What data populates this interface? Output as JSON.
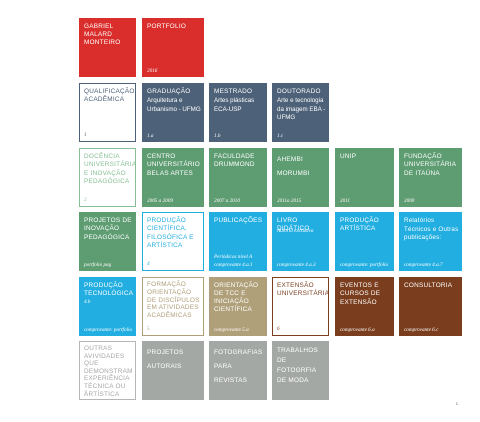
{
  "colors": {
    "red": "#d92e2b",
    "navy": "#4d6178",
    "green": "#5e9c72",
    "cyan": "#22aee1",
    "tan": "#b0a07a",
    "brown": "#7a3d1d",
    "gray": "#a4a8a4",
    "outline_navy": "#4d6178",
    "outline_green": "#86bf96",
    "outline_cyan": "#22aee1",
    "outline_gray": "#b6b6b6",
    "outline_tan": "#b0a07a",
    "outline_brown": "#7a3d1d"
  },
  "row1": {
    "name": "GABRIEL MALARD MONTEIRO",
    "portfolio": {
      "title": "PORTFOLIO",
      "year": "2016"
    }
  },
  "row2": [
    {
      "title": "QUALIFICAÇÃO ACADÊMICA",
      "code": "1"
    },
    {
      "title": "GRADUAÇÃO",
      "sub": "Arquitetura e Urbanismo - UFMG",
      "code": "1.a"
    },
    {
      "title": "MESTRADO",
      "sub": "Artes plásticas ECA-USP",
      "code": "1.b"
    },
    {
      "title": "DOUTORADO",
      "sub": "Arte e tecnologia da imagem EBA - UFMG",
      "code": "1.c"
    }
  ],
  "row3": [
    {
      "title": "DOCÊNCIA UNIVERSITÁRIA E INOVAÇÃO PEDAGÓGICA",
      "code": "2"
    },
    {
      "title": "CENTRO UNIVERSITÁRIO BELAS ARTES",
      "code": "2005 a 2009"
    },
    {
      "title": "FACULDADE DRUMMOND",
      "code": "2007 a 2010"
    },
    {
      "title": "AHEMBI MORUMBI",
      "code": "2011a 2015"
    },
    {
      "title": "UNIP",
      "code": "2011"
    },
    {
      "title": "FUNDAÇÃO UNIVERSITÁRIA DE ITAÚNA",
      "code": "2000"
    }
  ],
  "row4": [
    {
      "title": "PROJETOS DE INOVAÇÃO PEDAGÓGICA",
      "code": "portfolio pag"
    },
    {
      "title": "PRODUÇÃO CIENTÍFICA, FILOSÓFICA E ARTÍSTICA",
      "code": "4"
    },
    {
      "title": "PUBLICAÇÕES",
      "note": "Periódicos nível A",
      "code": "comprovante 4.a.1"
    },
    {
      "title": "LIVRO DIDÁTICO",
      "note": "Autoria exclusiva",
      "code": "comprovante 4.a.3"
    },
    {
      "title": "PRODUÇÃO ARTÍSTICA",
      "code": "comprovante: portfolio"
    },
    {
      "title": "Relatórios Técnicos e Outras publicações:",
      "code": "comprovante 4.a.7"
    }
  ],
  "row5": [
    {
      "title": "PRODUÇÃO TECNOLÓGICA",
      "num": "4.b",
      "code": "comprovante: portfolio"
    },
    {
      "title": "FORMAÇÃO ORIENTAÇÃO DE DISCÍPULOS EM ATIVIDADES ACADÊMICAS",
      "code": "5"
    },
    {
      "title": "ORIENTAÇÃO DE TCC E INICIAÇÃO CIENTÍFICA",
      "code": "comprovante 5.a"
    },
    {
      "title": "EXTENSÃO UNIVERSITÁRIA",
      "code": "6"
    },
    {
      "title": "EVENTOS E CURSOS DE EXTENSÃO",
      "code": "comprovante 6.a"
    },
    {
      "title": "CONSULTORIA",
      "code": "comprovante 6.c"
    }
  ],
  "row6": [
    {
      "title": "OUTRAS AVIVIDADES QUE DEMONSTRAM EXPERIÊNCIA TÉCNICA OU ARTÍSTICA",
      "code": "7"
    },
    {
      "title": "PROJETOS AUTORAIS"
    },
    {
      "title": "FOTOGRAFIAS PARA REVISTAS"
    },
    {
      "title": "TRABALHOS DE FOTOGRFIA DE MODA"
    }
  ],
  "page_number": "1"
}
